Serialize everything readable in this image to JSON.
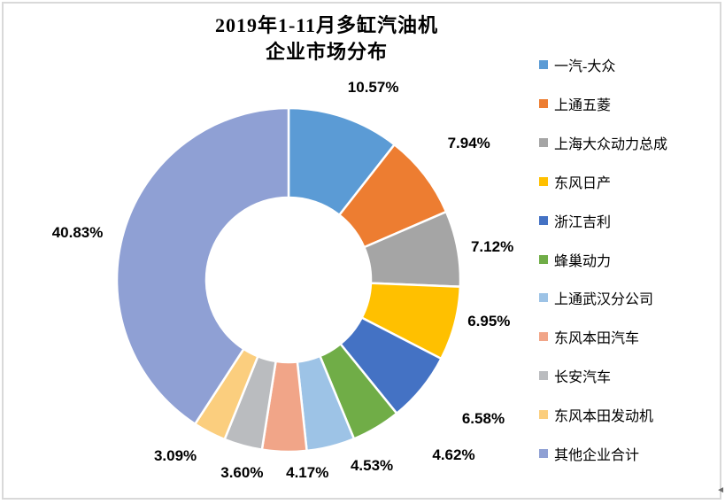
{
  "title": {
    "line1": "2019年1-11月多缸汽油机",
    "line2": "企业市场分布"
  },
  "chart_data": {
    "type": "pie",
    "subtype": "donut",
    "title": "2019年1-11月多缸汽油机企业市场分布",
    "categories": [
      "一汽-大众",
      "上通五菱",
      "上海大众动力总成",
      "东风日产",
      "浙江吉利",
      "蜂巢动力",
      "上通武汉分公司",
      "东风本田汽车",
      "长安汽车",
      "东风本田发动机",
      "其他企业合计"
    ],
    "values": [
      10.57,
      7.94,
      7.12,
      6.95,
      6.58,
      4.62,
      4.53,
      4.17,
      3.6,
      3.09,
      40.83
    ],
    "labels": [
      "10.57%",
      "7.94%",
      "7.12%",
      "6.95%",
      "6.58%",
      "4.62%",
      "4.53%",
      "4.17%",
      "3.60%",
      "3.09%",
      "40.83%"
    ],
    "colors": [
      "#5B9BD5",
      "#ED7D31",
      "#A5A5A5",
      "#FFC000",
      "#4472C4",
      "#70AD47",
      "#9DC3E6",
      "#F1A588",
      "#BABCBF",
      "#FBCE7E",
      "#8FA0D4"
    ],
    "start_angle_deg": 0,
    "direction": "clockwise",
    "donut_hole_ratio": 0.48,
    "legend_position": "right",
    "frame_border_color": "#d9d9d9"
  },
  "anchor": {
    "glyph": "◄"
  }
}
